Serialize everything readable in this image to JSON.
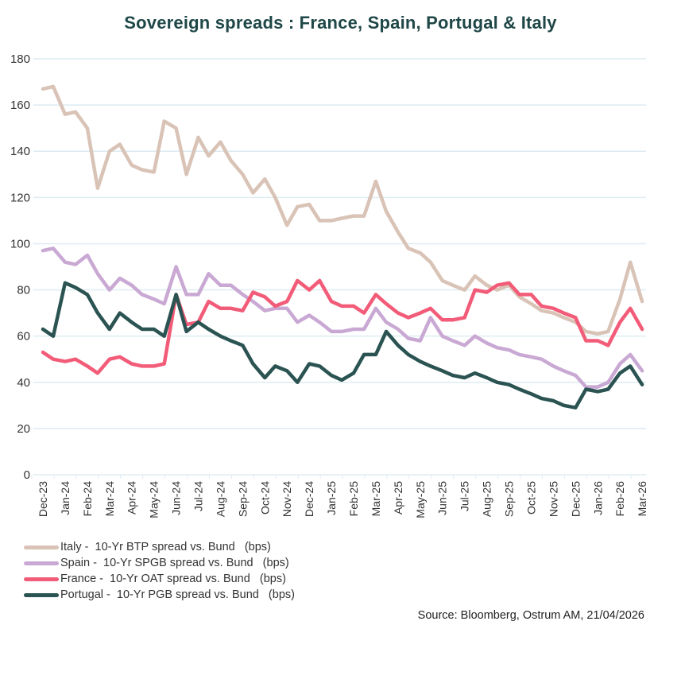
{
  "chart_data": {
    "type": "line",
    "title": "Sovereign spreads  : France, Spain, Portugal & Italy",
    "xlabel": "",
    "ylabel": "",
    "ylim": [
      0,
      180
    ],
    "yticks": [
      "0",
      "20",
      "40",
      "60",
      "80",
      "100",
      "120",
      "140",
      "160",
      "180"
    ],
    "xticks": [
      "Dec-23",
      "Jan-24",
      "Feb-24",
      "Mar-24",
      "Apr-24",
      "May-24",
      "Jun-24",
      "Jul-24",
      "Aug-24",
      "Sep-24",
      "Oct-24",
      "Nov-24",
      "Dec-24",
      "Jan-25",
      "Feb-25",
      "Mar-25",
      "Apr-25",
      "May-25",
      "Jun-25",
      "Jul-25",
      "Aug-25",
      "Sep-25",
      "Oct-25",
      "Nov-25",
      "Dec-25",
      "Jan-26",
      "Feb-26",
      "Mar-26"
    ],
    "grid": true,
    "legend_position": "bottom-left",
    "x": [
      "2023-12-01",
      "2023-12-15",
      "2024-01-01",
      "2024-01-15",
      "2024-02-01",
      "2024-02-15",
      "2024-03-01",
      "2024-03-15",
      "2024-04-01",
      "2024-04-15",
      "2024-05-01",
      "2024-05-15",
      "2024-06-01",
      "2024-06-15",
      "2024-07-01",
      "2024-07-15",
      "2024-08-01",
      "2024-08-15",
      "2024-09-01",
      "2024-09-15",
      "2024-10-01",
      "2024-10-15",
      "2024-11-01",
      "2024-11-15",
      "2024-12-01",
      "2024-12-15",
      "2025-01-01",
      "2025-01-15",
      "2025-02-01",
      "2025-02-15",
      "2025-03-01",
      "2025-03-15",
      "2025-04-01",
      "2025-04-15",
      "2025-05-01",
      "2025-05-15",
      "2025-06-01",
      "2025-06-15",
      "2025-07-01",
      "2025-07-15",
      "2025-08-01",
      "2025-08-15",
      "2025-09-01",
      "2025-09-15",
      "2025-10-01",
      "2025-10-15",
      "2025-11-01",
      "2025-11-15",
      "2025-12-01",
      "2025-12-15",
      "2026-01-01",
      "2026-01-15",
      "2026-02-01",
      "2026-02-15",
      "2026-03-01"
    ],
    "series": [
      {
        "name": "Italy -  10-Yr BTP spread vs. Bund   (bps)",
        "color": "#d9c3b6",
        "values": [
          167,
          168,
          156,
          157,
          150,
          124,
          140,
          143,
          134,
          132,
          131,
          153,
          150,
          130,
          146,
          138,
          144,
          136,
          130,
          122,
          128,
          120,
          108,
          116,
          117,
          110,
          110,
          111,
          112,
          112,
          127,
          114,
          105,
          98,
          96,
          92,
          84,
          82,
          80,
          86,
          82,
          80,
          82,
          77,
          74,
          71,
          70,
          68,
          66,
          62,
          61,
          62,
          76,
          92,
          75
        ]
      },
      {
        "name": "Spain -  10-Yr SPGB spread vs. Bund   (bps)",
        "color": "#c9a9d4",
        "values": [
          97,
          98,
          92,
          91,
          95,
          87,
          80,
          85,
          82,
          78,
          76,
          74,
          90,
          78,
          78,
          87,
          82,
          82,
          78,
          75,
          71,
          72,
          72,
          66,
          69,
          66,
          62,
          62,
          63,
          63,
          72,
          66,
          63,
          59,
          58,
          68,
          60,
          58,
          56,
          60,
          57,
          55,
          54,
          52,
          51,
          50,
          47,
          45,
          43,
          38,
          38,
          40,
          48,
          52,
          45
        ]
      },
      {
        "name": "France -  10-Yr OAT spread vs. Bund   (bps)",
        "color": "#f25c78",
        "values": [
          53,
          50,
          49,
          50,
          47,
          44,
          50,
          51,
          48,
          47,
          47,
          48,
          78,
          65,
          66,
          75,
          72,
          72,
          71,
          79,
          77,
          73,
          75,
          84,
          80,
          84,
          75,
          73,
          73,
          70,
          78,
          74,
          70,
          68,
          70,
          72,
          67,
          67,
          68,
          80,
          79,
          82,
          83,
          78,
          78,
          73,
          72,
          70,
          68,
          58,
          58,
          56,
          66,
          72,
          63
        ]
      },
      {
        "name": "Portugal -  10-Yr PGB spread vs. Bund   (bps)",
        "color": "#2a5352",
        "values": [
          63,
          60,
          83,
          81,
          78,
          70,
          63,
          70,
          66,
          63,
          63,
          60,
          78,
          62,
          66,
          63,
          60,
          58,
          56,
          48,
          42,
          47,
          45,
          40,
          48,
          47,
          43,
          41,
          44,
          52,
          52,
          62,
          56,
          52,
          49,
          47,
          45,
          43,
          42,
          44,
          42,
          40,
          39,
          37,
          35,
          33,
          32,
          30,
          29,
          37,
          36,
          37,
          44,
          47,
          39
        ]
      }
    ],
    "source": "Source: Bloomberg,  Ostrum AM, 21/04/2026"
  }
}
